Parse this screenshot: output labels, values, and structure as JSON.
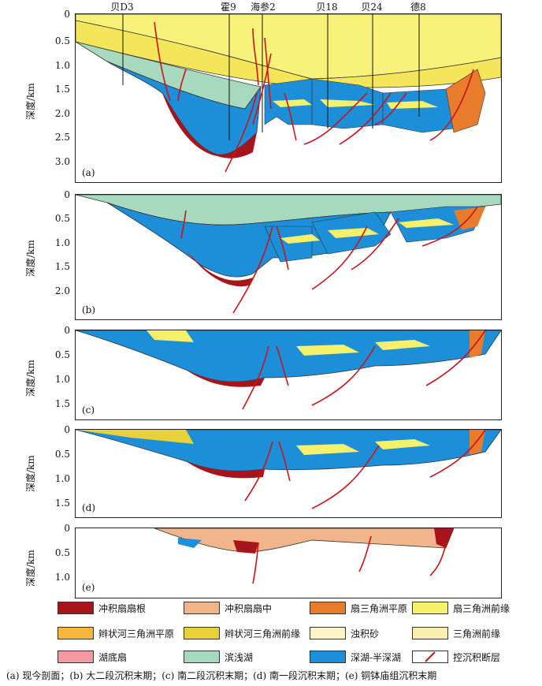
{
  "wells": [
    "贝D3",
    "霍9",
    "海参2",
    "贝18",
    "贝24",
    "德8"
  ],
  "y_axis_label": "深度/km",
  "panels": [
    {
      "label": "(a)",
      "ticks": [
        "0",
        "0.5",
        "1.0",
        "1.5",
        "2.0",
        "2.5",
        "3.0"
      ]
    },
    {
      "label": "(b)",
      "ticks": [
        "0",
        "0.5",
        "1.0",
        "1.5",
        "2.0"
      ]
    },
    {
      "label": "(c)",
      "ticks": [
        "0",
        "0.5",
        "1.0",
        "1.5"
      ]
    },
    {
      "label": "(d)",
      "ticks": [
        "0",
        "0.5",
        "1.0",
        "1.5"
      ]
    },
    {
      "label": "(e)",
      "ticks": [
        "0",
        "0.5",
        "1.0"
      ]
    }
  ],
  "legend": [
    {
      "label": "冲积扇扇根",
      "color": "#a8141b"
    },
    {
      "label": "冲积扇扇中",
      "color": "#f2b48a"
    },
    {
      "label": "扇三角洲平原",
      "color": "#e87b2c"
    },
    {
      "label": "扇三角洲前缘",
      "color": "#f7f06a"
    },
    {
      "label": "辫状河三角洲平原",
      "color": "#f5b83a"
    },
    {
      "label": "辫状河三角洲前缘",
      "color": "#e8d23a"
    },
    {
      "label": "浊积砂",
      "color": "#fbf5c8"
    },
    {
      "label": "三角洲前缘",
      "color": "#fbefb0"
    },
    {
      "label": "湖底扇",
      "color": "#f29aa0"
    },
    {
      "label": "滨浅湖",
      "color": "#a6d9be"
    },
    {
      "label": "深湖-半深湖",
      "color": "#1d8fd8"
    },
    {
      "label": "控沉积断层",
      "color": "#c8141b"
    }
  ],
  "caption": "(a) 现今剖面；(b) 大二段沉积末期；(c) 南二段沉积末期；(d) 南一段沉积末期；(e) 铜钵庙组沉积末期"
}
